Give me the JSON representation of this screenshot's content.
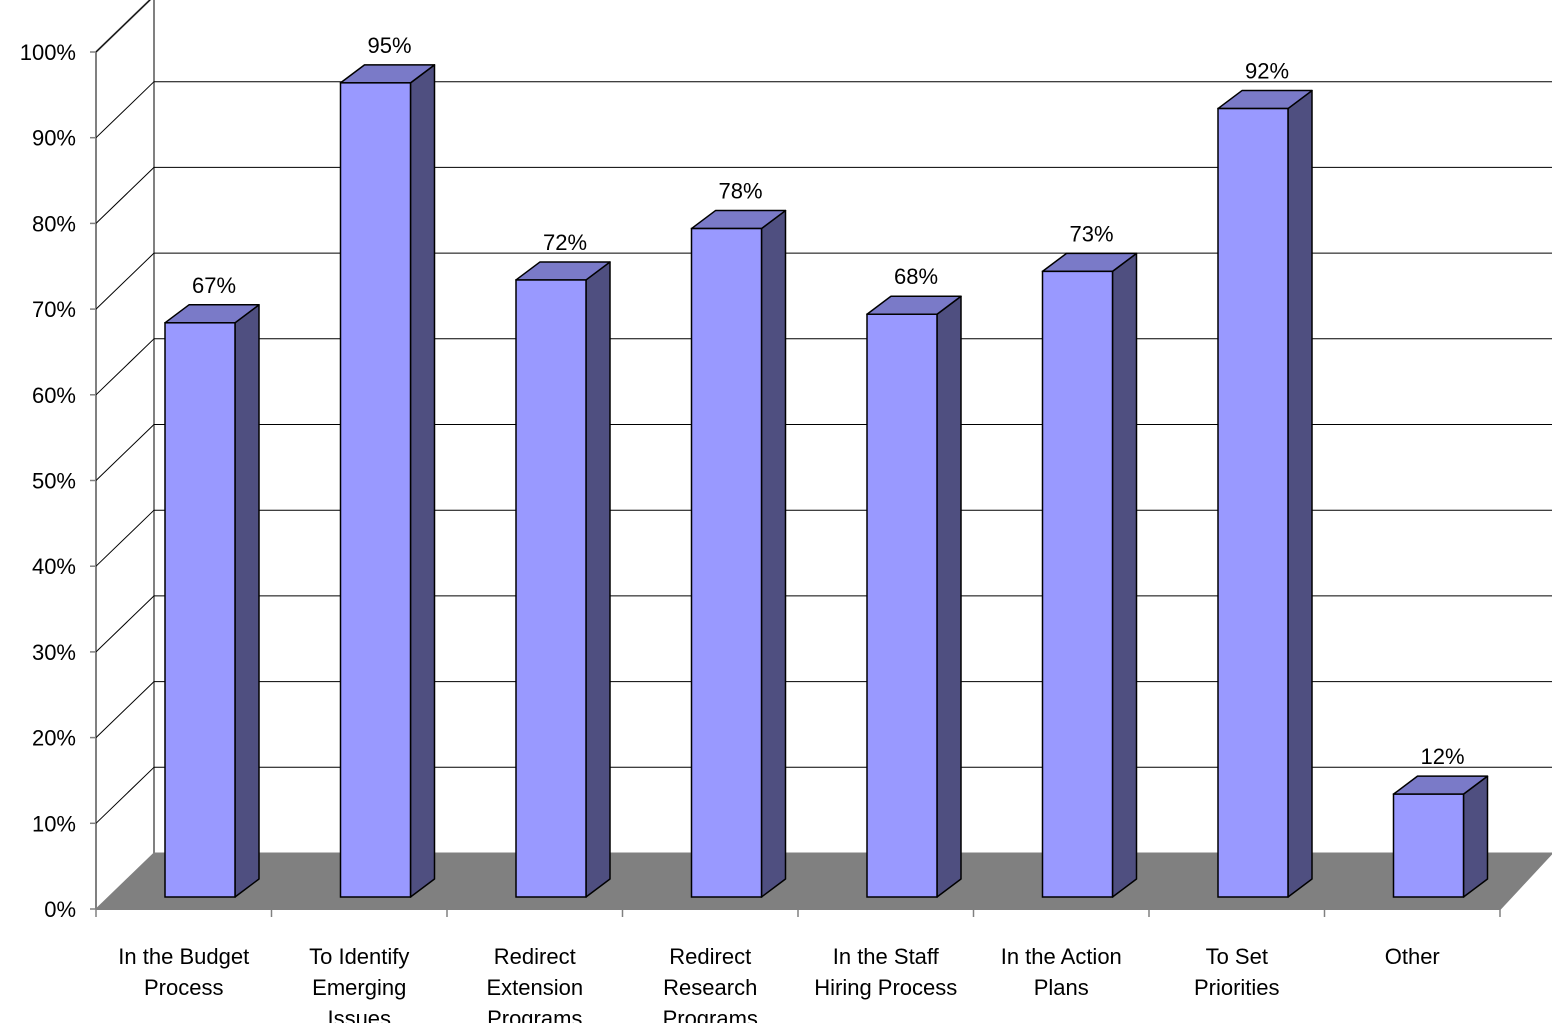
{
  "chart_data": {
    "type": "bar",
    "title": "",
    "xlabel": "",
    "ylabel": "",
    "categories": [
      [
        "In the Budget",
        "Process"
      ],
      [
        "To Identify",
        "Emerging",
        "Issues"
      ],
      [
        "Redirect",
        "Extension",
        "Programs"
      ],
      [
        "Redirect",
        "Research",
        "Programs"
      ],
      [
        "In the Staff",
        "Hiring Process"
      ],
      [
        "In the Action",
        "Plans"
      ],
      [
        "To Set",
        "Priorities"
      ],
      [
        "Other"
      ]
    ],
    "values": [
      67,
      95,
      72,
      78,
      68,
      73,
      92,
      12
    ],
    "value_labels": [
      "67%",
      "95%",
      "72%",
      "78%",
      "68%",
      "73%",
      "92%",
      "12%"
    ],
    "ylim": [
      0,
      100
    ],
    "yticks": [
      "0%",
      "10%",
      "20%",
      "30%",
      "40%",
      "50%",
      "60%",
      "70%",
      "80%",
      "90%",
      "100%"
    ],
    "grid": true,
    "legend": "none",
    "style": "3d-column",
    "colors": {
      "bar_front": "#9999FF",
      "bar_side": "#4F4F80",
      "bar_top": "#7A7AC8",
      "floor": "#808080",
      "grid": "#000000",
      "wall_line": "#808080"
    }
  }
}
